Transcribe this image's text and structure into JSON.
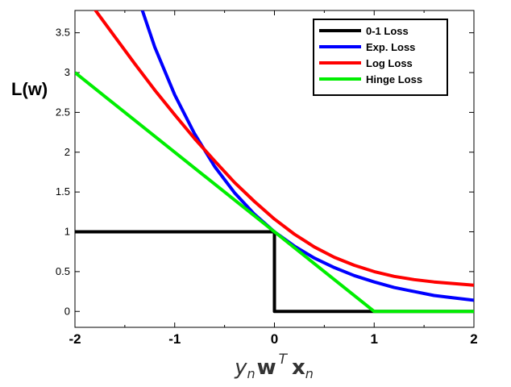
{
  "chart_data": {
    "type": "line",
    "title": "",
    "ylabel": "L(w)",
    "xlabel": {
      "y": "y",
      "n1": "n",
      "w": "w",
      "T": "T",
      "x": "x",
      "n2": "n"
    },
    "xlim": [
      -2,
      2
    ],
    "ylim": [
      -0.2,
      3.78
    ],
    "x_ticks": [
      "-2",
      "-1",
      "0",
      "1",
      "2"
    ],
    "y_ticks": [
      "0",
      "0.5",
      "1",
      "1.5",
      "2",
      "2.5",
      "3",
      "3.5"
    ],
    "grid": false,
    "legend_position": "top-right",
    "series": [
      {
        "name": "0-1 Loss",
        "color": "#000000",
        "x": [
          -2,
          0,
          0,
          2
        ],
        "y": [
          1,
          1,
          0,
          0
        ]
      },
      {
        "name": "Exp. Loss",
        "color": "#0000ff",
        "x": [
          -1.4,
          -1.2,
          -1.0,
          -0.8,
          -0.6,
          -0.4,
          -0.2,
          0,
          0.2,
          0.4,
          0.6,
          0.8,
          1.0,
          1.2,
          1.4,
          1.6,
          1.8,
          2.0
        ],
        "y": [
          4.06,
          3.32,
          2.72,
          2.23,
          1.82,
          1.49,
          1.22,
          1.0,
          0.82,
          0.67,
          0.55,
          0.45,
          0.37,
          0.3,
          0.25,
          0.2,
          0.17,
          0.14
        ]
      },
      {
        "name": "Log Loss",
        "color": "#ff0000",
        "x": [
          -1.8,
          -1.6,
          -1.4,
          -1.2,
          -1.0,
          -0.8,
          -0.6,
          -0.4,
          -0.2,
          0,
          0.2,
          0.4,
          0.6,
          0.8,
          1.0,
          1.2,
          1.4,
          1.6,
          1.8,
          2.0
        ],
        "y": [
          3.79,
          3.45,
          3.11,
          2.78,
          2.47,
          2.17,
          1.89,
          1.62,
          1.38,
          1.16,
          0.97,
          0.81,
          0.68,
          0.58,
          0.5,
          0.44,
          0.4,
          0.37,
          0.35,
          0.33
        ]
      },
      {
        "name": "Hinge Loss",
        "color": "#00ee00",
        "x": [
          -2,
          1,
          2
        ],
        "y": [
          3,
          0,
          0
        ]
      }
    ]
  }
}
